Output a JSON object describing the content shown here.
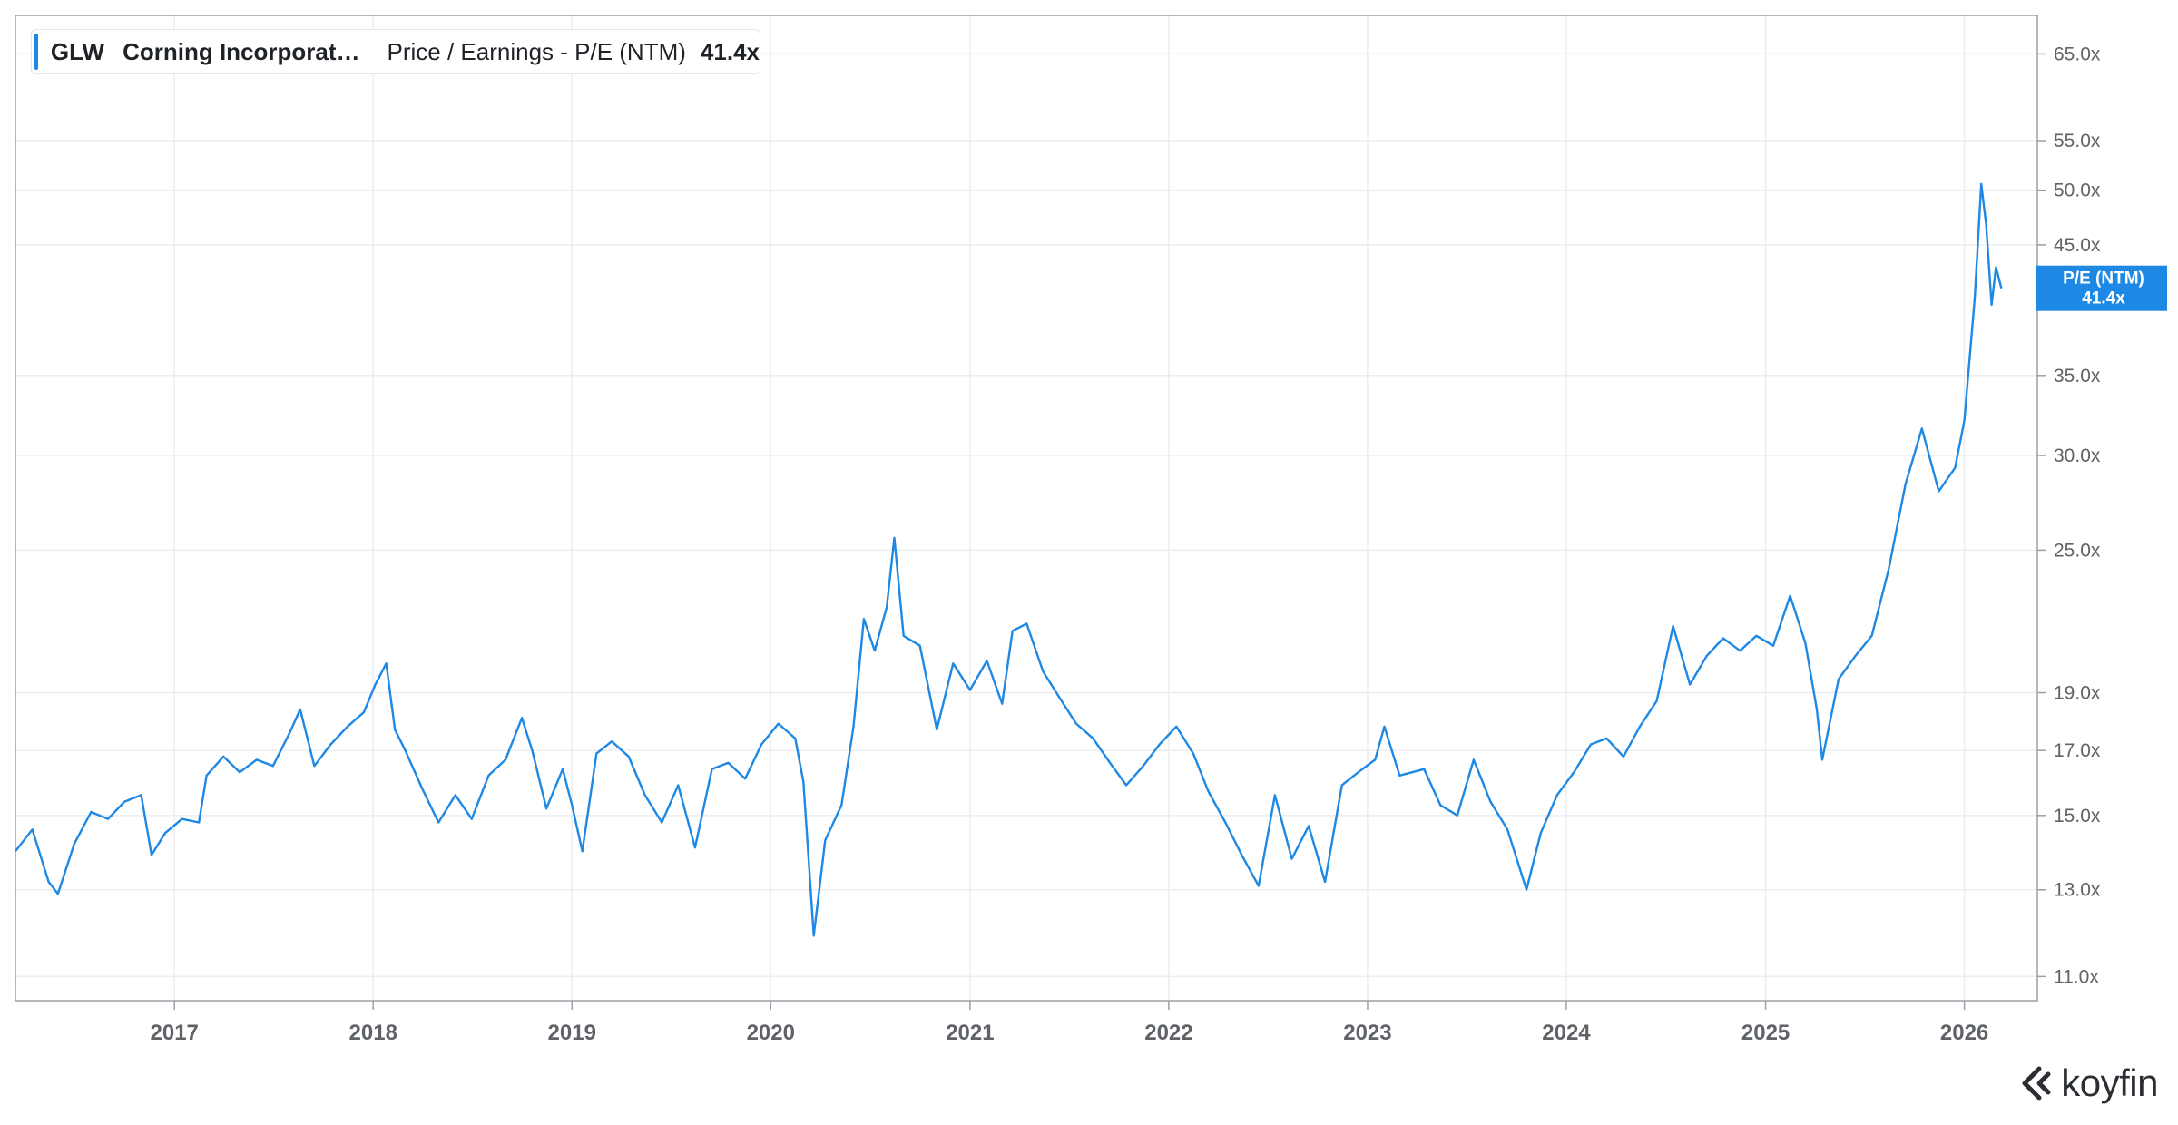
{
  "legend": {
    "ticker": "GLW",
    "company": "Corning Incorporat…",
    "metric": "Price / Earnings - P/E (NTM)",
    "value": "41.4x"
  },
  "current_label": {
    "title": "P/E (NTM)",
    "value": "41.4x"
  },
  "brand": {
    "name": "koyfin"
  },
  "colors": {
    "line": "#1e88e5",
    "grid": "#ebedf0",
    "axis_text": "#5f6368",
    "badge": "#1e88e5"
  },
  "chart_data": {
    "type": "line",
    "title": "",
    "xlabel": "",
    "ylabel": "",
    "y_scale": "log",
    "ylim": [
      10.5,
      70
    ],
    "xlim": [
      "2016-03-15",
      "2026-05-15"
    ],
    "x_ticks": [
      "2017",
      "2018",
      "2019",
      "2020",
      "2021",
      "2022",
      "2023",
      "2024",
      "2025",
      "2026"
    ],
    "y_ticks": [
      {
        "value": 11,
        "label": "11.0x"
      },
      {
        "value": 13,
        "label": "13.0x"
      },
      {
        "value": 15,
        "label": "15.0x"
      },
      {
        "value": 17,
        "label": "17.0x"
      },
      {
        "value": 19,
        "label": "19.0x"
      },
      {
        "value": 25,
        "label": "25.0x"
      },
      {
        "value": 30,
        "label": "30.0x"
      },
      {
        "value": 35,
        "label": "35.0x"
      },
      {
        "value": 45,
        "label": "45.0x"
      },
      {
        "value": 50,
        "label": "50.0x"
      },
      {
        "value": 55,
        "label": "55.0x"
      },
      {
        "value": 65,
        "label": "65.0x"
      }
    ],
    "grid": true,
    "series": [
      {
        "name": "P/E (NTM)",
        "points": [
          [
            "2016-03-15",
            14.0
          ],
          [
            "2016-04-15",
            14.6
          ],
          [
            "2016-05-15",
            13.2
          ],
          [
            "2016-06-01",
            12.9
          ],
          [
            "2016-07-01",
            14.2
          ],
          [
            "2016-08-01",
            15.1
          ],
          [
            "2016-09-01",
            14.9
          ],
          [
            "2016-10-01",
            15.4
          ],
          [
            "2016-11-01",
            15.6
          ],
          [
            "2016-11-20",
            13.9
          ],
          [
            "2016-12-15",
            14.5
          ],
          [
            "2017-01-15",
            14.9
          ],
          [
            "2017-02-15",
            14.8
          ],
          [
            "2017-03-01",
            16.2
          ],
          [
            "2017-04-01",
            16.8
          ],
          [
            "2017-05-01",
            16.3
          ],
          [
            "2017-06-01",
            16.7
          ],
          [
            "2017-07-01",
            16.5
          ],
          [
            "2017-08-01",
            17.6
          ],
          [
            "2017-08-20",
            18.4
          ],
          [
            "2017-09-15",
            16.5
          ],
          [
            "2017-10-15",
            17.2
          ],
          [
            "2017-11-15",
            17.8
          ],
          [
            "2017-12-15",
            18.3
          ],
          [
            "2018-01-05",
            19.3
          ],
          [
            "2018-01-25",
            20.1
          ],
          [
            "2018-02-10",
            17.7
          ],
          [
            "2018-03-01",
            17.0
          ],
          [
            "2018-04-01",
            15.8
          ],
          [
            "2018-05-01",
            14.8
          ],
          [
            "2018-06-01",
            15.6
          ],
          [
            "2018-07-01",
            14.9
          ],
          [
            "2018-08-01",
            16.2
          ],
          [
            "2018-09-01",
            16.7
          ],
          [
            "2018-10-01",
            18.1
          ],
          [
            "2018-10-20",
            17.0
          ],
          [
            "2018-11-15",
            15.2
          ],
          [
            "2018-12-15",
            16.4
          ],
          [
            "2019-01-01",
            15.3
          ],
          [
            "2019-01-20",
            14.0
          ],
          [
            "2019-02-15",
            16.9
          ],
          [
            "2019-03-15",
            17.3
          ],
          [
            "2019-04-15",
            16.8
          ],
          [
            "2019-05-15",
            15.6
          ],
          [
            "2019-06-15",
            14.8
          ],
          [
            "2019-07-15",
            15.9
          ],
          [
            "2019-08-15",
            14.1
          ],
          [
            "2019-09-15",
            16.4
          ],
          [
            "2019-10-15",
            16.6
          ],
          [
            "2019-11-15",
            16.1
          ],
          [
            "2019-12-15",
            17.2
          ],
          [
            "2020-01-15",
            17.9
          ],
          [
            "2020-02-15",
            17.4
          ],
          [
            "2020-03-01",
            16.0
          ],
          [
            "2020-03-20",
            11.9
          ],
          [
            "2020-04-10",
            14.3
          ],
          [
            "2020-05-10",
            15.3
          ],
          [
            "2020-06-01",
            17.8
          ],
          [
            "2020-06-20",
            21.9
          ],
          [
            "2020-07-10",
            20.6
          ],
          [
            "2020-08-01",
            22.4
          ],
          [
            "2020-08-15",
            25.6
          ],
          [
            "2020-09-01",
            21.2
          ],
          [
            "2020-10-01",
            20.8
          ],
          [
            "2020-11-01",
            17.7
          ],
          [
            "2020-12-01",
            20.1
          ],
          [
            "2021-01-01",
            19.1
          ],
          [
            "2021-02-01",
            20.2
          ],
          [
            "2021-03-01",
            18.6
          ],
          [
            "2021-03-20",
            21.4
          ],
          [
            "2021-04-15",
            21.7
          ],
          [
            "2021-05-15",
            19.8
          ],
          [
            "2021-06-15",
            18.8
          ],
          [
            "2021-07-15",
            17.9
          ],
          [
            "2021-08-15",
            17.4
          ],
          [
            "2021-09-15",
            16.6
          ],
          [
            "2021-10-15",
            15.9
          ],
          [
            "2021-11-15",
            16.5
          ],
          [
            "2021-12-15",
            17.2
          ],
          [
            "2022-01-15",
            17.8
          ],
          [
            "2022-02-15",
            16.9
          ],
          [
            "2022-03-15",
            15.7
          ],
          [
            "2022-04-15",
            14.8
          ],
          [
            "2022-05-15",
            13.9
          ],
          [
            "2022-06-15",
            13.1
          ],
          [
            "2022-07-15",
            15.6
          ],
          [
            "2022-08-15",
            13.8
          ],
          [
            "2022-09-15",
            14.7
          ],
          [
            "2022-10-15",
            13.2
          ],
          [
            "2022-11-15",
            15.9
          ],
          [
            "2022-12-15",
            16.3
          ],
          [
            "2023-01-15",
            16.7
          ],
          [
            "2023-02-01",
            17.8
          ],
          [
            "2023-03-01",
            16.2
          ],
          [
            "2023-04-15",
            16.4
          ],
          [
            "2023-05-15",
            15.3
          ],
          [
            "2023-06-15",
            15.0
          ],
          [
            "2023-07-15",
            16.7
          ],
          [
            "2023-08-15",
            15.4
          ],
          [
            "2023-09-15",
            14.6
          ],
          [
            "2023-10-20",
            13.0
          ],
          [
            "2023-11-15",
            14.5
          ],
          [
            "2023-12-15",
            15.6
          ],
          [
            "2024-01-15",
            16.3
          ],
          [
            "2024-02-15",
            17.2
          ],
          [
            "2024-03-15",
            17.4
          ],
          [
            "2024-04-15",
            16.8
          ],
          [
            "2024-05-15",
            17.8
          ],
          [
            "2024-06-15",
            18.7
          ],
          [
            "2024-07-15",
            21.6
          ],
          [
            "2024-08-15",
            19.3
          ],
          [
            "2024-09-15",
            20.4
          ],
          [
            "2024-10-15",
            21.1
          ],
          [
            "2024-11-15",
            20.6
          ],
          [
            "2024-12-15",
            21.2
          ],
          [
            "2025-01-15",
            20.8
          ],
          [
            "2025-02-15",
            22.9
          ],
          [
            "2025-03-15",
            20.9
          ],
          [
            "2025-04-05",
            18.4
          ],
          [
            "2025-04-15",
            16.7
          ],
          [
            "2025-05-15",
            19.5
          ],
          [
            "2025-06-15",
            20.4
          ],
          [
            "2025-07-15",
            21.2
          ],
          [
            "2025-08-15",
            24.1
          ],
          [
            "2025-09-15",
            28.4
          ],
          [
            "2025-10-15",
            31.6
          ],
          [
            "2025-11-15",
            28.0
          ],
          [
            "2025-12-15",
            29.3
          ],
          [
            "2026-01-01",
            32.1
          ],
          [
            "2026-01-20",
            40.6
          ],
          [
            "2026-02-01",
            50.6
          ],
          [
            "2026-02-10",
            46.8
          ],
          [
            "2026-02-20",
            40.1
          ],
          [
            "2026-02-28",
            43.1
          ],
          [
            "2026-03-10",
            41.4
          ]
        ]
      }
    ]
  }
}
